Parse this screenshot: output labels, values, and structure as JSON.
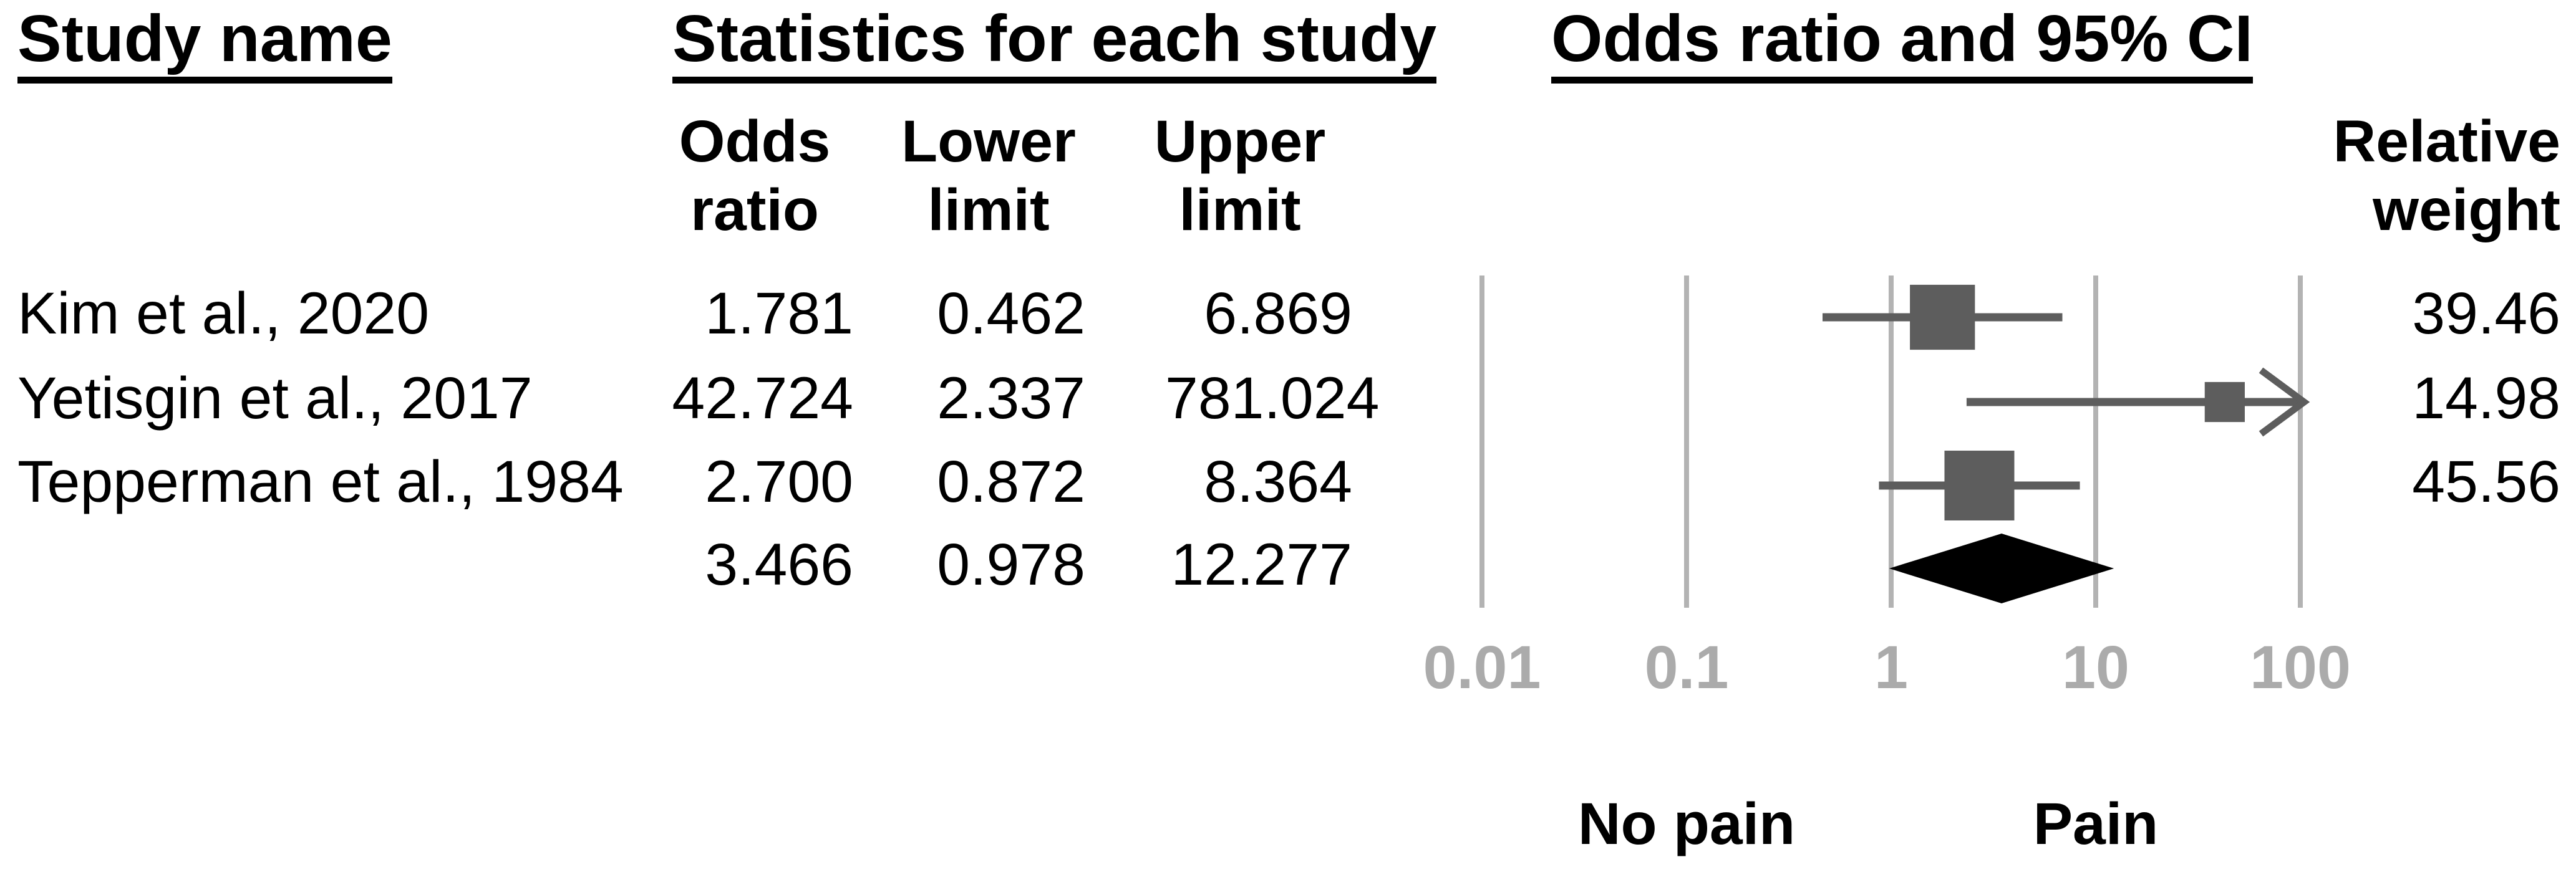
{
  "headers": {
    "study_name": "Study name",
    "statistics": "Statistics for each study",
    "plot": "Odds ratio and 95% CI",
    "col_odds": "Odds\nratio",
    "col_lower": "Lower\nlimit",
    "col_upper": "Upper\nlimit",
    "col_weight": "Relative\nweight"
  },
  "chart_data": {
    "type": "forest",
    "title": "Odds ratio and 95% CI",
    "x_axis": {
      "scale": "log",
      "min": 0.01,
      "max": 100,
      "ticks": [
        0.01,
        0.1,
        1,
        10,
        100
      ],
      "tick_labels": [
        "0.01",
        "0.1",
        "1",
        "10",
        "100"
      ],
      "left_label": "No pain",
      "right_label": "Pain",
      "left_label_at": 0.1,
      "right_label_at": 10,
      "grid": true
    },
    "studies": [
      {
        "name": "Kim et al., 2020",
        "odds_ratio": "1.781",
        "lower": "0.462",
        "upper": "6.869",
        "weight": "39.46"
      },
      {
        "name": "Yetisgin et al., 2017",
        "odds_ratio": "42.724",
        "lower": "2.337",
        "upper": "781.024",
        "weight": "14.98"
      },
      {
        "name": "Tepperman et al., 1984",
        "odds_ratio": "2.700",
        "lower": "0.872",
        "upper": "8.364",
        "weight": "45.56"
      }
    ],
    "summary": {
      "odds_ratio": "3.466",
      "lower": "0.978",
      "upper": "12.277"
    },
    "colors": {
      "marker": "#5d5d5d",
      "ci_line": "#5d5d5d",
      "gridline": "#b3b3b3",
      "tick_label": "#ababab",
      "diamond": "#000000",
      "text": "#000000"
    }
  }
}
